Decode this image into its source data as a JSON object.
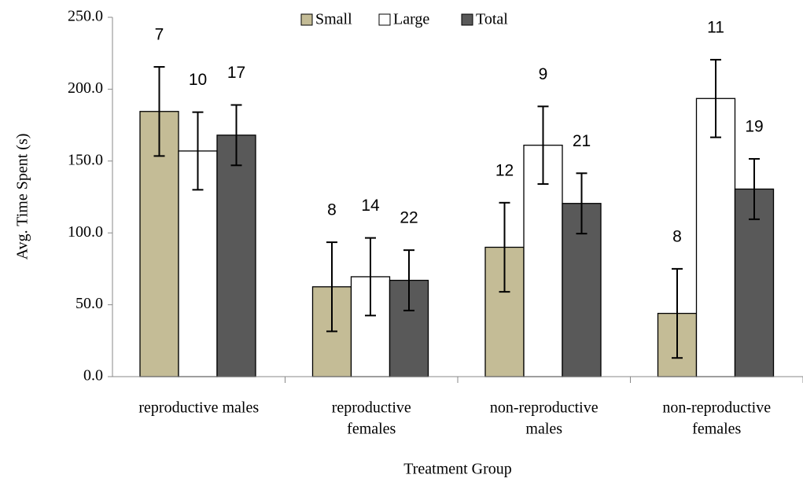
{
  "chart_data": {
    "type": "bar",
    "x_label": "Treatment Group",
    "y_label": "Avg. Time Spent (s)",
    "categories": [
      [
        "reproductive males"
      ],
      [
        "reproductive",
        "females"
      ],
      [
        "non-reproductive",
        "males"
      ],
      [
        "non-reproductive",
        "females"
      ]
    ],
    "series": [
      {
        "name": "Small",
        "color": "#c4bc96",
        "values": [
          184.5,
          62.5,
          90,
          44
        ],
        "errors": [
          31,
          31,
          31,
          31
        ],
        "sample_sizes": [
          7,
          8,
          12,
          8
        ]
      },
      {
        "name": "Large",
        "color": "#ffffff",
        "values": [
          157,
          69.5,
          161,
          193.5
        ],
        "errors": [
          27,
          27,
          27,
          27
        ],
        "sample_sizes": [
          10,
          14,
          9,
          11
        ]
      },
      {
        "name": "Total",
        "color": "#595959",
        "values": [
          168,
          67,
          120.5,
          130.5
        ],
        "errors": [
          21,
          21,
          21,
          21
        ],
        "sample_sizes": [
          17,
          22,
          21,
          19
        ]
      }
    ],
    "ylim": [
      0,
      250
    ],
    "yticks": [
      {
        "value": 0,
        "label": "0.0"
      },
      {
        "value": 50,
        "label": "50.0"
      },
      {
        "value": 100,
        "label": "100.0"
      },
      {
        "value": 150,
        "label": "150.0"
      },
      {
        "value": 200,
        "label": "200.0"
      },
      {
        "value": 250,
        "label": "250.0"
      }
    ],
    "legend": "top"
  }
}
